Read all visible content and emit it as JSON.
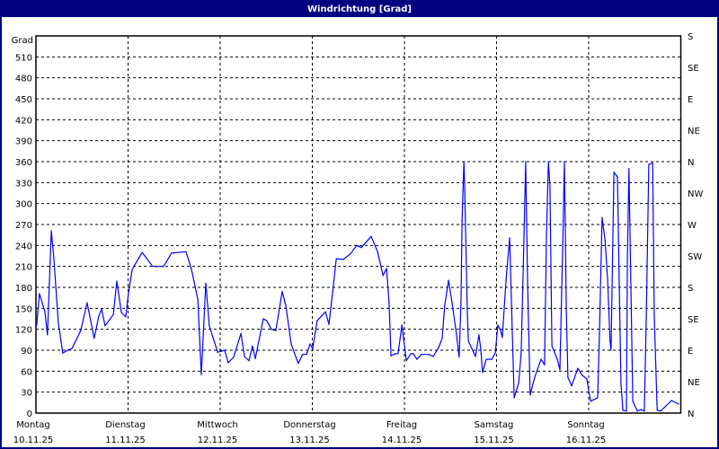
{
  "window": {
    "title": "Windrichtung [Grad]"
  },
  "chart_data": {
    "type": "line",
    "title": "Windrichtung [Grad]",
    "ylabel": "Grad",
    "ylim": [
      0,
      540
    ],
    "yticks": [
      0,
      30,
      60,
      90,
      120,
      150,
      180,
      210,
      240,
      270,
      300,
      330,
      360,
      390,
      420,
      450,
      480,
      510
    ],
    "y2ticks": [
      {
        "value": 0,
        "label": "N"
      },
      {
        "value": 45,
        "label": "NE"
      },
      {
        "value": 90,
        "label": "E"
      },
      {
        "value": 135,
        "label": "SE"
      },
      {
        "value": 180,
        "label": "S"
      },
      {
        "value": 225,
        "label": "SW"
      },
      {
        "value": 270,
        "label": "W"
      },
      {
        "value": 315,
        "label": "NW"
      },
      {
        "value": 360,
        "label": "N"
      },
      {
        "value": 405,
        "label": "NE"
      },
      {
        "value": 450,
        "label": "E"
      },
      {
        "value": 495,
        "label": "SE"
      },
      {
        "value": 540,
        "label": "S"
      }
    ],
    "xlim": [
      "10.11.25 00:00",
      "17.11.25 00:00"
    ],
    "xticks": [
      {
        "day": "Montag",
        "date": "10.11.25"
      },
      {
        "day": "Dienstag",
        "date": "11.11.25"
      },
      {
        "day": "Mittwoch",
        "date": "12.11.25"
      },
      {
        "day": "Donnerstag",
        "date": "13.11.25"
      },
      {
        "day": "Freitag",
        "date": "14.11.25"
      },
      {
        "day": "Samstag",
        "date": "15.11.25"
      },
      {
        "day": "Sonntag",
        "date": "16.11.25"
      }
    ],
    "grid": true,
    "line_color": "#0000ff",
    "series": [
      {
        "points": [
          [
            "10.11.25 00:10",
            125
          ],
          [
            "10.11.25 00:55",
            171
          ],
          [
            "10.11.25 02:20",
            145
          ],
          [
            "10.11.25 03:00",
            112
          ],
          [
            "10.11.25 04:00",
            261
          ],
          [
            "10.11.25 04:40",
            222
          ],
          [
            "10.11.25 05:50",
            129
          ],
          [
            "10.11.25 07:00",
            86
          ],
          [
            "10.11.25 08:40",
            91
          ],
          [
            "10.11.25 09:20",
            92
          ],
          [
            "10.11.25 11:40",
            118
          ],
          [
            "10.11.25 13:20",
            158
          ],
          [
            "10.11.25 15:10",
            107
          ],
          [
            "10.11.25 16:20",
            138
          ],
          [
            "10.11.25 17:05",
            149
          ],
          [
            "10.11.25 18:00",
            125
          ],
          [
            "10.11.25 20:10",
            141
          ],
          [
            "10.11.25 21:05",
            189
          ],
          [
            "10.11.25 22:15",
            144
          ],
          [
            "10.11.25 23:25",
            138
          ],
          [
            "11.11.25 00:05",
            171
          ],
          [
            "11.11.25 01:05",
            206
          ],
          [
            "11.11.25 03:40",
            230
          ],
          [
            "11.11.25 06:25",
            210
          ],
          [
            "11.11.25 09:15",
            210
          ],
          [
            "11.11.25 11:20",
            229
          ],
          [
            "11.11.25 15:05",
            231
          ],
          [
            "11.11.25 16:30",
            206
          ],
          [
            "11.11.25 18:10",
            163
          ],
          [
            "11.11.25 19:05",
            55
          ],
          [
            "11.11.25 20:15",
            186
          ],
          [
            "11.11.25 21:10",
            125
          ],
          [
            "11.11.25 23:20",
            87
          ],
          [
            "12.11.25 01:10",
            90
          ],
          [
            "12.11.25 02:05",
            72
          ],
          [
            "12.11.25 03:30",
            80
          ],
          [
            "12.11.25 05:25",
            114
          ],
          [
            "12.11.25 06:20",
            81
          ],
          [
            "12.11.25 07:30",
            75
          ],
          [
            "12.11.25 08:25",
            96
          ],
          [
            "12.11.25 09:10",
            78
          ],
          [
            "12.11.25 11:15",
            135
          ],
          [
            "12.11.25 12:10",
            132
          ],
          [
            "12.11.25 13:20",
            120
          ],
          [
            "12.11.25 14:30",
            118
          ],
          [
            "12.11.25 16:10",
            174
          ],
          [
            "12.11.25 17:05",
            154
          ],
          [
            "12.11.25 18:30",
            99
          ],
          [
            "12.11.25 20:20",
            71
          ],
          [
            "12.11.25 21:30",
            84
          ],
          [
            "12.11.25 22:30",
            84
          ],
          [
            "12.11.25 23:25",
            99
          ],
          [
            "13.11.25 00:05",
            92
          ],
          [
            "13.11.25 01:15",
            132
          ],
          [
            "13.11.25 03:25",
            145
          ],
          [
            "13.11.25 04:20",
            127
          ],
          [
            "13.11.25 05:15",
            171
          ],
          [
            "13.11.25 06:15",
            221
          ],
          [
            "13.11.25 08:05",
            220
          ],
          [
            "13.11.25 09:55",
            228
          ],
          [
            "13.11.25 11:35",
            240
          ],
          [
            "13.11.25 12:45",
            237
          ],
          [
            "13.11.25 13:55",
            244
          ],
          [
            "13.11.25 15:20",
            253
          ],
          [
            "13.11.25 17:00",
            231
          ],
          [
            "13.11.25 18:25",
            197
          ],
          [
            "13.11.25 19:20",
            207
          ],
          [
            "13.11.25 20:00",
            158
          ],
          [
            "13.11.25 20:30",
            82
          ],
          [
            "13.11.25 21:40",
            85
          ],
          [
            "13.11.25 22:20",
            85
          ],
          [
            "13.11.25 23:20",
            126
          ],
          [
            "14.11.25 00:30",
            75
          ],
          [
            "14.11.25 01:40",
            85
          ],
          [
            "14.11.25 02:20",
            85
          ],
          [
            "14.11.25 03:15",
            77
          ],
          [
            "14.11.25 04:25",
            84
          ],
          [
            "14.11.25 06:20",
            84
          ],
          [
            "14.11.25 07:30",
            81
          ],
          [
            "14.11.25 08:55",
            94
          ],
          [
            "14.11.25 09:50",
            107
          ],
          [
            "14.11.25 10:30",
            154
          ],
          [
            "14.11.25 11:30",
            190
          ],
          [
            "14.11.25 12:25",
            158
          ],
          [
            "14.11.25 13:35",
            112
          ],
          [
            "14.11.25 14:15",
            80
          ],
          [
            "14.11.25 14:45",
            163
          ],
          [
            "14.11.25 15:00",
            274
          ],
          [
            "14.11.25 15:30",
            360
          ],
          [
            "14.11.25 15:40",
            330
          ],
          [
            "14.11.25 16:25",
            138
          ],
          [
            "14.11.25 16:40",
            103
          ],
          [
            "14.11.25 18:30",
            81
          ],
          [
            "14.11.25 19:25",
            112
          ],
          [
            "14.11.25 19:55",
            90
          ],
          [
            "14.11.25 20:20",
            58
          ],
          [
            "14.11.25 21:20",
            77
          ],
          [
            "14.11.25 22:45",
            77
          ],
          [
            "14.11.25 23:40",
            86
          ],
          [
            "15.11.25 00:20",
            126
          ],
          [
            "15.11.25 01:05",
            118
          ],
          [
            "15.11.25 01:30",
            108
          ],
          [
            "15.11.25 02:30",
            193
          ],
          [
            "15.11.25 03:25",
            251
          ],
          [
            "15.11.25 03:50",
            167
          ],
          [
            "15.11.25 04:35",
            22
          ],
          [
            "15.11.25 05:45",
            43
          ],
          [
            "15.11.25 06:25",
            86
          ],
          [
            "15.11.25 07:10",
            257
          ],
          [
            "15.11.25 07:35",
            360
          ],
          [
            "15.11.25 08:05",
            189
          ],
          [
            "15.11.25 08:45",
            26
          ],
          [
            "15.11.25 09:55",
            51
          ],
          [
            "15.11.25 11:35",
            77
          ],
          [
            "15.11.25 12:30",
            69
          ],
          [
            "15.11.25 13:00",
            253
          ],
          [
            "15.11.25 13:30",
            360
          ],
          [
            "15.11.25 13:55",
            326
          ],
          [
            "15.11.25 14:25",
            96
          ],
          [
            "15.11.25 15:50",
            77
          ],
          [
            "15.11.25 16:30",
            62
          ],
          [
            "15.11.25 17:15",
            244
          ],
          [
            "15.11.25 17:40",
            360
          ],
          [
            "15.11.25 18:10",
            150
          ],
          [
            "15.11.25 18:35",
            51
          ],
          [
            "15.11.25 19:35",
            39
          ],
          [
            "15.11.25 21:10",
            64
          ],
          [
            "15.11.25 22:20",
            54
          ],
          [
            "15.11.25 23:30",
            49
          ],
          [
            "16.11.25 00:30",
            17
          ],
          [
            "16.11.25 02:20",
            22
          ],
          [
            "16.11.25 02:50",
            120
          ],
          [
            "16.11.25 03:30",
            280
          ],
          [
            "16.11.25 04:15",
            248
          ],
          [
            "16.11.25 04:55",
            193
          ],
          [
            "16.11.25 05:35",
            103
          ],
          [
            "16.11.25 05:50",
            90
          ],
          [
            "16.11.25 06:35",
            345
          ],
          [
            "16.11.25 07:30",
            338
          ],
          [
            "16.11.25 08:25",
            43
          ],
          [
            "16.11.25 08:55",
            4
          ],
          [
            "16.11.25 09:50",
            3
          ],
          [
            "16.11.25 10:05",
            223
          ],
          [
            "16.11.25 10:30",
            350
          ],
          [
            "16.11.25 11:30",
            17
          ],
          [
            "16.11.25 12:40",
            3
          ],
          [
            "16.11.25 13:35",
            5
          ],
          [
            "16.11.25 14:30",
            3
          ],
          [
            "16.11.25 15:00",
            138
          ],
          [
            "16.11.25 15:40",
            356
          ],
          [
            "16.11.25 16:40",
            358
          ],
          [
            "16.11.25 17:05",
            138
          ],
          [
            "16.11.25 17:50",
            4
          ],
          [
            "16.11.25 18:45",
            3
          ],
          [
            "16.11.25 21:35",
            18
          ],
          [
            "16.11.25 23:25",
            13
          ]
        ]
      }
    ]
  }
}
